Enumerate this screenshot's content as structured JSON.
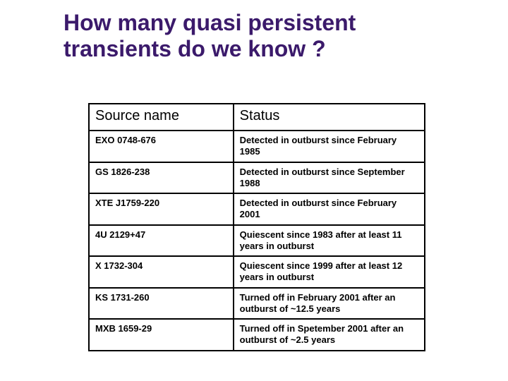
{
  "title_line1": "How many quasi persistent",
  "title_line2": "transients do we know ?",
  "table": {
    "headers": {
      "col1": "Source name",
      "col2": "Status"
    },
    "rows": [
      {
        "source": "EXO 0748-676",
        "status": "Detected in outburst since February 1985"
      },
      {
        "source": "GS 1826-238",
        "status": "Detected in outburst since September 1988"
      },
      {
        "source": "XTE J1759-220",
        "status": "Detected in outburst since February 2001"
      },
      {
        "source": "4U 2129+47",
        "status": "Quiescent since 1983 after at least 11 years in outburst"
      },
      {
        "source": "X 1732-304",
        "status": "Quiescent since 1999 after at least 12 years in outburst"
      },
      {
        "source": "KS 1731-260",
        "status": "Turned off in February 2001 after an outburst of ~12.5 years"
      },
      {
        "source": "MXB 1659-29",
        "status": "Turned off in Spetember 2001 after an outburst of ~2.5 years"
      }
    ]
  },
  "style": {
    "title_color": "#3b1a6b",
    "title_fontsize": 32,
    "header_fontsize": 20,
    "cell_fontsize": 13,
    "border_color": "#000000",
    "background": "#ffffff",
    "col1_width_pct": 43,
    "col2_width_pct": 57,
    "slide_width": 720,
    "slide_height": 540
  }
}
